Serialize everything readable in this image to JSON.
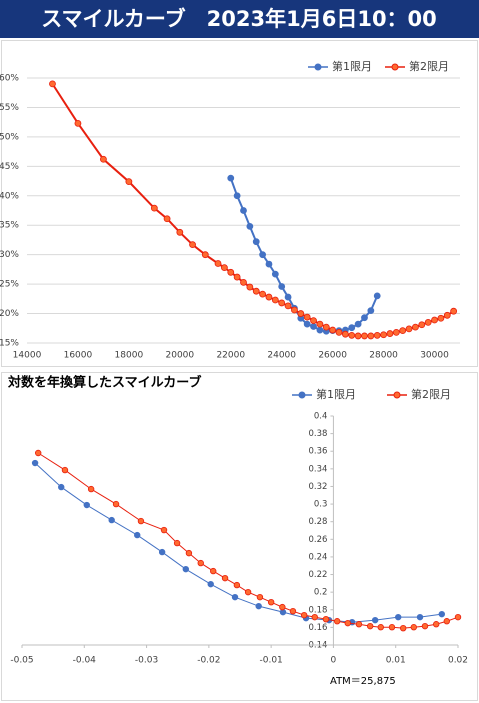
{
  "header": {
    "title": "スマイルカーブ　2023年1月6日10：00"
  },
  "chart_data": [
    {
      "type": "line",
      "legend": "top-right",
      "grid": true,
      "xlim": [
        14000,
        31000
      ],
      "xticks": [
        14000,
        16000,
        18000,
        20000,
        22000,
        24000,
        26000,
        28000,
        30000
      ],
      "ylim": [
        15,
        60
      ],
      "yticks": [
        {
          "value": 15,
          "label": "15%"
        },
        {
          "value": 20,
          "label": "20%"
        },
        {
          "value": 25,
          "label": "25%"
        },
        {
          "value": 30,
          "label": "30%"
        },
        {
          "value": 35,
          "label": "35%"
        },
        {
          "value": 40,
          "label": "40%"
        },
        {
          "value": 45,
          "label": "45%"
        },
        {
          "value": 50,
          "label": "50%"
        },
        {
          "value": 55,
          "label": "55%"
        },
        {
          "value": 60,
          "label": "60%"
        }
      ],
      "series": [
        {
          "name": "第1限月",
          "color": "#4472c4",
          "x": [
            22000,
            22250,
            22500,
            22750,
            23000,
            23250,
            23500,
            23750,
            24000,
            24250,
            24500,
            24750,
            25000,
            25250,
            25500,
            25750,
            26000,
            26250,
            26500,
            26750,
            27000,
            27250,
            27500,
            27750
          ],
          "values": [
            43,
            40,
            37.5,
            34.8,
            32.2,
            30,
            28.4,
            26.7,
            24.6,
            22.8,
            20.9,
            19.2,
            18.2,
            17.8,
            17.2,
            17,
            17.1,
            17.1,
            17.2,
            17.6,
            18.2,
            19.3,
            20.5,
            23
          ]
        },
        {
          "name": "第2限月",
          "color": "#e8200f",
          "x": [
            15000,
            16000,
            17000,
            18000,
            19000,
            19500,
            20000,
            20500,
            21000,
            21500,
            21750,
            22000,
            22250,
            22500,
            22750,
            23000,
            23250,
            23500,
            23750,
            24000,
            24250,
            24500,
            24750,
            25000,
            25250,
            25500,
            25750,
            26000,
            26250,
            26500,
            26750,
            27000,
            27250,
            27500,
            27750,
            28000,
            28250,
            28500,
            28750,
            29000,
            29250,
            29500,
            29750,
            30000,
            30250,
            30500,
            30750
          ],
          "values": [
            59,
            52.3,
            46.2,
            42.4,
            37.9,
            36.1,
            33.8,
            31.7,
            30,
            28.5,
            27.8,
            27,
            26.2,
            25.3,
            24.5,
            23.8,
            23.3,
            22.8,
            22.3,
            21.8,
            21.3,
            20.6,
            20,
            19.4,
            18.8,
            18.2,
            17.7,
            17.2,
            16.8,
            16.5,
            16.3,
            16.2,
            16.2,
            16.2,
            16.3,
            16.4,
            16.6,
            16.8,
            17.1,
            17.4,
            17.7,
            18.1,
            18.5,
            18.9,
            19.2,
            19.7,
            20.4
          ]
        }
      ]
    },
    {
      "type": "line",
      "title": "対数を年換算したスマイルカーブ",
      "legend": "top-right",
      "grid": false,
      "yaxis_crosses": 0,
      "annotation": "ATM＝25,875",
      "xlim": [
        -0.05,
        0.02
      ],
      "xticks": [
        -0.05,
        -0.04,
        -0.03,
        -0.02,
        -0.01,
        0,
        0.01,
        0.02
      ],
      "ylim": [
        0.14,
        0.4
      ],
      "yticks": [
        0.14,
        0.16,
        0.18,
        0.2,
        0.22,
        0.24,
        0.26,
        0.28,
        0.3,
        0.32,
        0.34,
        0.36,
        0.38,
        0.4
      ],
      "series": [
        {
          "name": "第1限月",
          "color": "#4472c4",
          "x": [
            -0.0479,
            -0.0437,
            -0.0396,
            -0.0356,
            -0.0315,
            -0.0275,
            -0.0237,
            -0.0197,
            -0.0158,
            -0.012,
            -0.0081,
            -0.0044,
            -0.0007,
            0.003,
            0.0067,
            0.0104,
            0.0139,
            0.0174
          ],
          "values": [
            0.3466,
            0.3193,
            0.2989,
            0.2818,
            0.2648,
            0.2455,
            0.2261,
            0.2091,
            0.1943,
            0.1841,
            0.1773,
            0.1705,
            0.1682,
            0.1659,
            0.1682,
            0.1716,
            0.1716,
            0.175
          ]
        },
        {
          "name": "第2限月",
          "color": "#e8200f",
          "x": [
            -0.0474,
            -0.0431,
            -0.0389,
            -0.0349,
            -0.0309,
            -0.0272,
            -0.0251,
            -0.0232,
            -0.0213,
            -0.0193,
            -0.0174,
            -0.0155,
            -0.0137,
            -0.0118,
            -0.01,
            -0.0082,
            -0.0065,
            -0.0047,
            -0.003,
            -0.0012,
            0.0006,
            0.0023,
            0.0041,
            0.0059,
            0.0076,
            0.0094,
            0.0112,
            0.0129,
            0.0147,
            0.0165,
            0.0182,
            0.02
          ],
          "values": [
            0.358,
            0.3386,
            0.317,
            0.3,
            0.2807,
            0.2705,
            0.2557,
            0.2443,
            0.233,
            0.2239,
            0.2159,
            0.208,
            0.2,
            0.1943,
            0.1886,
            0.183,
            0.1784,
            0.1739,
            0.1716,
            0.1693,
            0.167,
            0.1648,
            0.1636,
            0.1614,
            0.1602,
            0.1602,
            0.1591,
            0.1602,
            0.1614,
            0.1636,
            0.167,
            0.1716
          ]
        }
      ]
    }
  ]
}
